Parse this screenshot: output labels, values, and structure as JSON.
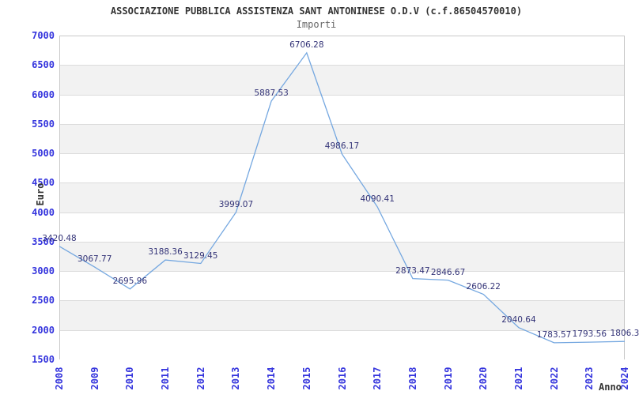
{
  "chart_data": {
    "type": "line",
    "title": "ASSOCIAZIONE PUBBLICA ASSISTENZA SANT ANTONINESE O.D.V (c.f.86504570010)",
    "subtitle": "Importi",
    "xlabel": "Anno",
    "ylabel": "Euro",
    "categories": [
      "2008",
      "2009",
      "2010",
      "2011",
      "2012",
      "2013",
      "2014",
      "2015",
      "2016",
      "2017",
      "2018",
      "2019",
      "2020",
      "2021",
      "2022",
      "2023",
      "2024"
    ],
    "values": [
      3420.48,
      3067.77,
      2695.96,
      3188.36,
      3129.45,
      3999.07,
      5887.53,
      6706.28,
      4986.17,
      4090.41,
      2873.47,
      2846.67,
      2606.22,
      2040.64,
      1783.57,
      1793.56,
      1806.3
    ],
    "point_labels": [
      "3420.48",
      "3067.77",
      "2695.96",
      "3188.36",
      "3129.45",
      "3999.07",
      "5887.53",
      "6706.28",
      "4986.17",
      "4090.41",
      "2873.47",
      "2846.67",
      "2606.22",
      "2040.64",
      "1783.57",
      "1793.56",
      "1806.3"
    ],
    "ylim": [
      1500,
      7000
    ],
    "ytick_step": 500,
    "yticks": [
      7000,
      6500,
      6000,
      5500,
      5000,
      4500,
      4000,
      3500,
      3000,
      2500,
      2000,
      1500
    ],
    "grid": "horizontal",
    "banded_background": true,
    "legend_position": "none",
    "colors": {
      "line": "#74a7e0",
      "tick_label": "#3434dd",
      "point_label": "#333377",
      "title": "#333333",
      "subtitle": "#666666",
      "axis_title": "#333333",
      "band_gray": "#f2f2f2",
      "band_white": "#ffffff",
      "gridline": "#dcdcdc",
      "plot_border": "#c8c8c8",
      "background": "#ffffff"
    }
  }
}
